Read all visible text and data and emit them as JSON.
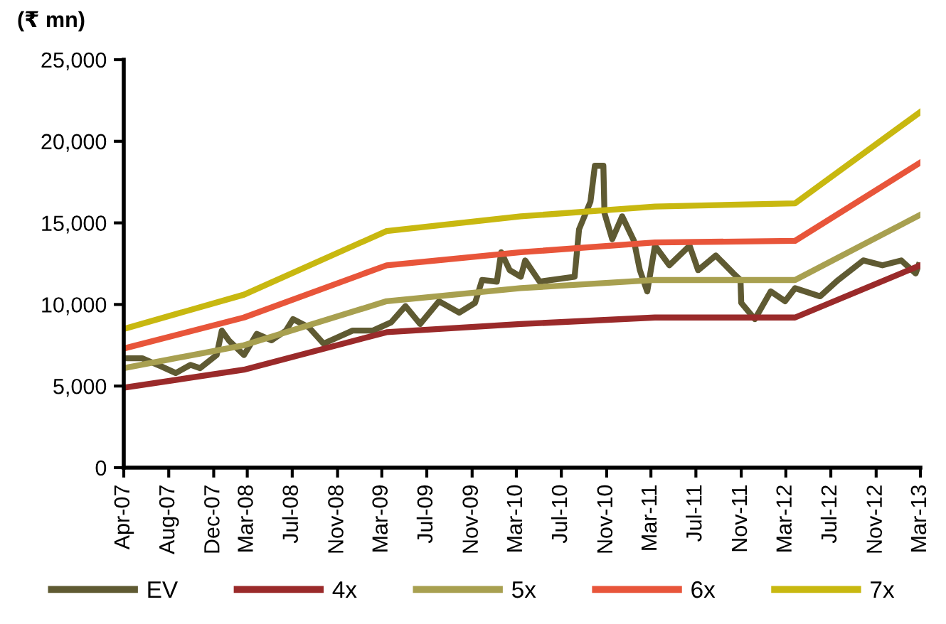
{
  "chart_data": {
    "type": "line",
    "ylabel": "(₹ mn)",
    "xlim": [
      "2007-04-01",
      "2013-03-01"
    ],
    "xticks": [
      {
        "value": "2007-04-01",
        "label": "Apr-07"
      },
      {
        "value": "2007-08-01",
        "label": "Aug-07"
      },
      {
        "value": "2007-12-01",
        "label": "Dec-07"
      },
      {
        "value": "2008-03-01",
        "label": "Mar-08"
      },
      {
        "value": "2008-07-01",
        "label": "Jul-08"
      },
      {
        "value": "2008-11-01",
        "label": "Nov-08"
      },
      {
        "value": "2009-03-01",
        "label": "Mar-09"
      },
      {
        "value": "2009-07-01",
        "label": "Jul-09"
      },
      {
        "value": "2009-11-01",
        "label": "Nov-09"
      },
      {
        "value": "2010-03-01",
        "label": "Mar-10"
      },
      {
        "value": "2010-07-01",
        "label": "Jul-10"
      },
      {
        "value": "2010-11-01",
        "label": "Nov-10"
      },
      {
        "value": "2011-03-01",
        "label": "Mar-11"
      },
      {
        "value": "2011-07-01",
        "label": "Jul-11"
      },
      {
        "value": "2011-11-01",
        "label": "Nov-11"
      },
      {
        "value": "2012-03-01",
        "label": "Mar-12"
      },
      {
        "value": "2012-07-01",
        "label": "Jul-12"
      },
      {
        "value": "2012-11-01",
        "label": "Nov-12"
      },
      {
        "value": "2013-03-01",
        "label": "Mar-13"
      }
    ],
    "ylim": [
      0,
      25000
    ],
    "yticks": [
      0,
      {
        "value": 5000,
        "label": "5,000"
      },
      {
        "value": 10000,
        "label": "10,000"
      },
      {
        "value": 15000,
        "label": "15,000"
      },
      {
        "value": 20000,
        "label": "20,000"
      },
      {
        "value": 25000,
        "label": "25,000"
      }
    ],
    "grid": false,
    "legend": "bottom",
    "marker": "none",
    "line_style": "solid",
    "series": [
      {
        "name": "EV",
        "color": "#5f5a32",
        "x": [
          "2007-04-01",
          "2007-05-21",
          "2007-07-12",
          "2007-08-20",
          "2007-09-29",
          "2007-10-25",
          "2007-12-09",
          "2007-12-23",
          "2008-01-11",
          "2008-02-21",
          "2008-03-27",
          "2008-05-06",
          "2008-06-14",
          "2008-07-03",
          "2008-08-15",
          "2008-09-24",
          "2008-12-12",
          "2009-02-05",
          "2009-03-26",
          "2009-05-04",
          "2009-06-13",
          "2009-08-03",
          "2009-09-27",
          "2009-11-09",
          "2009-11-28",
          "2010-01-07",
          "2010-01-19",
          "2010-02-11",
          "2010-03-13",
          "2010-03-25",
          "2010-05-03",
          "2010-08-06",
          "2010-08-18",
          "2010-09-18",
          "2010-09-30",
          "2010-10-23",
          "2010-10-26",
          "2010-11-16",
          "2010-12-13",
          "2011-01-14",
          "2011-01-30",
          "2011-02-19",
          "2011-03-12",
          "2011-04-20",
          "2011-06-14",
          "2011-07-07",
          "2011-08-24",
          "2011-10-11",
          "2011-10-30",
          "2011-11-01",
          "2011-12-08",
          "2012-01-20",
          "2012-02-28",
          "2012-03-26",
          "2012-06-02",
          "2012-07-21",
          "2012-09-27",
          "2012-11-18",
          "2013-01-08",
          "2013-02-16",
          "2013-02-24"
        ],
        "values": [
          6700,
          6700,
          6200,
          5800,
          6300,
          6100,
          6900,
          8400,
          7800,
          6900,
          8200,
          7800,
          8400,
          9100,
          8600,
          7600,
          8400,
          8400,
          8900,
          9900,
          8800,
          10200,
          9500,
          10100,
          11500,
          11400,
          13200,
          12100,
          11700,
          12700,
          11400,
          11700,
          14600,
          16300,
          18500,
          18500,
          15600,
          14000,
          15400,
          13900,
          12100,
          10800,
          13600,
          12400,
          13600,
          12100,
          13000,
          11900,
          11500,
          10100,
          9100,
          10800,
          10200,
          11000,
          10500,
          11500,
          12700,
          12400,
          12700,
          11900,
          12400
        ]
      },
      {
        "name": "4x",
        "color": "#9a2a2a",
        "x": [
          "2007-04-01",
          "2008-02-21",
          "2009-03-14",
          "2010-03-13",
          "2011-03-12",
          "2012-03-26",
          "2013-03-01"
        ],
        "values": [
          4900,
          6000,
          8300,
          8800,
          9200,
          9200,
          12400
        ]
      },
      {
        "name": "5x",
        "color": "#a8a050",
        "x": [
          "2007-04-01",
          "2008-02-21",
          "2009-03-14",
          "2010-03-13",
          "2011-03-12",
          "2012-03-26",
          "2013-03-01"
        ],
        "values": [
          6100,
          7500,
          10200,
          11000,
          11500,
          11500,
          15500
        ]
      },
      {
        "name": "6x",
        "color": "#e8553a",
        "x": [
          "2007-04-01",
          "2008-02-21",
          "2009-03-14",
          "2010-03-13",
          "2011-03-12",
          "2012-03-26",
          "2013-03-01"
        ],
        "values": [
          7300,
          9200,
          12400,
          13200,
          13800,
          13900,
          18700
        ]
      },
      {
        "name": "7x",
        "color": "#c8b810",
        "x": [
          "2007-04-01",
          "2008-02-21",
          "2009-03-14",
          "2010-03-13",
          "2011-03-12",
          "2012-03-26",
          "2013-03-01"
        ],
        "values": [
          8500,
          10600,
          14500,
          15400,
          16000,
          16200,
          21800
        ]
      }
    ]
  }
}
